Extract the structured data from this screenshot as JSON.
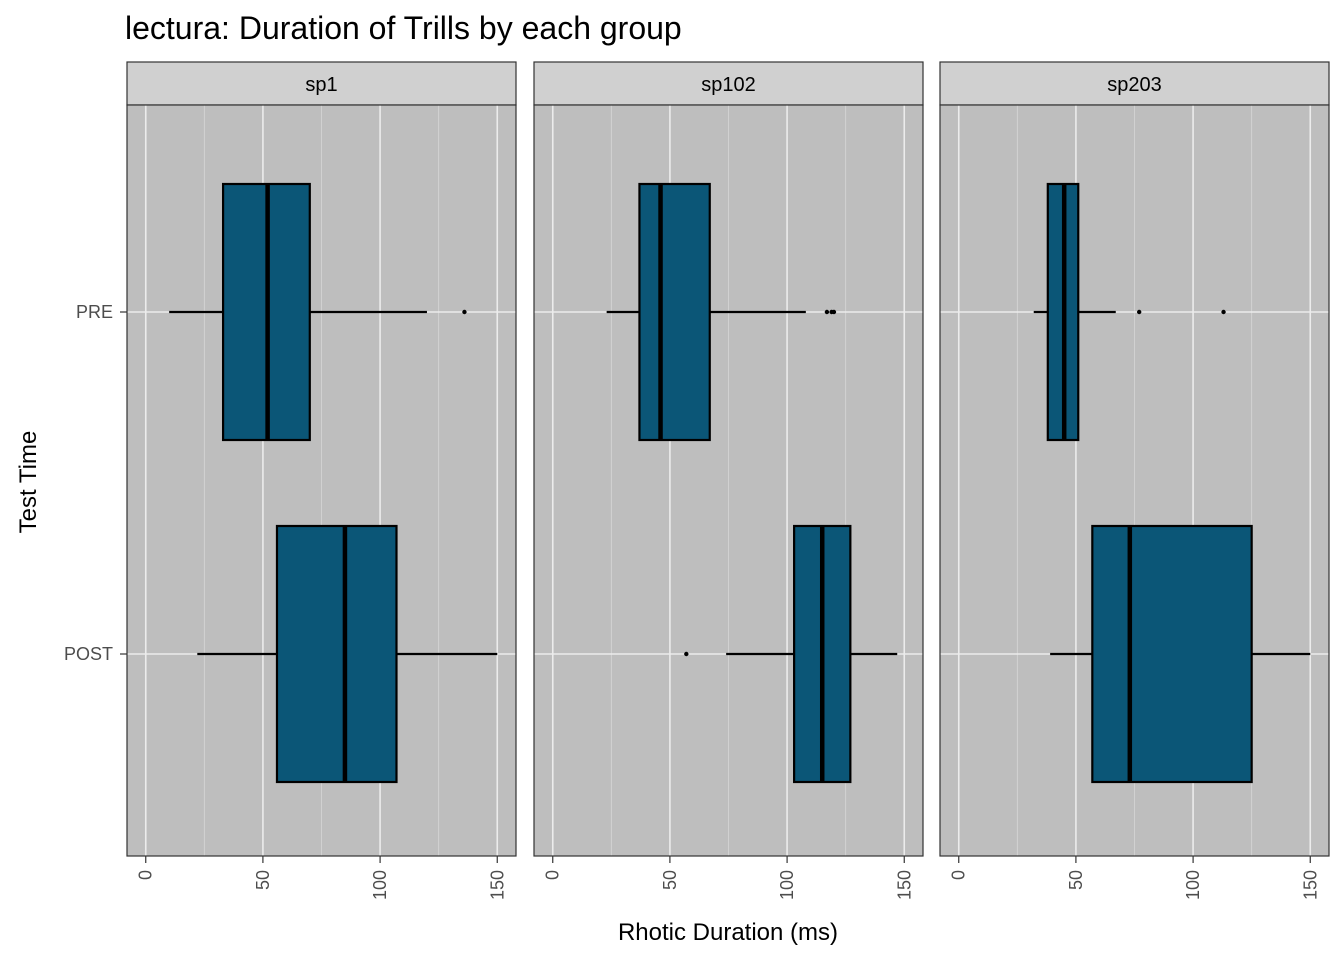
{
  "chart_data": {
    "type": "boxplot",
    "title": "lectura: Duration of Trills by each group",
    "xlabel": "Rhotic Duration (ms)",
    "ylabel": "Test Time",
    "xlim": [
      -8,
      158
    ],
    "x_ticks": [
      0,
      50,
      100,
      150
    ],
    "x_tick_labels": [
      "0",
      "50",
      "100",
      "150"
    ],
    "categories": [
      "PRE",
      "POST"
    ],
    "grid": true,
    "fill_color": "#0b5677",
    "panel_background": "#bebebe",
    "strip_background": "#d0d0d0",
    "panels": [
      {
        "label": "sp1",
        "boxes": [
          {
            "category": "PRE",
            "whisker_low": 10,
            "q1": 33,
            "median": 52,
            "q3": 70,
            "whisker_high": 120,
            "outliers": [
              136
            ]
          },
          {
            "category": "POST",
            "whisker_low": 22,
            "q1": 56,
            "median": 85,
            "q3": 107,
            "whisker_high": 150,
            "outliers": []
          }
        ]
      },
      {
        "label": "sp102",
        "boxes": [
          {
            "category": "PRE",
            "whisker_low": 23,
            "q1": 37,
            "median": 46,
            "q3": 67,
            "whisker_high": 108,
            "outliers": [
              117,
              119,
              120
            ]
          },
          {
            "category": "POST",
            "whisker_low": 74,
            "q1": 103,
            "median": 115,
            "q3": 127,
            "whisker_high": 147,
            "outliers": [
              57
            ]
          }
        ]
      },
      {
        "label": "sp203",
        "boxes": [
          {
            "category": "PRE",
            "whisker_low": 32,
            "q1": 38,
            "median": 45,
            "q3": 51,
            "whisker_high": 67,
            "outliers": [
              77,
              113
            ]
          },
          {
            "category": "POST",
            "whisker_low": 39,
            "q1": 57,
            "median": 73,
            "q3": 125,
            "whisker_high": 150,
            "outliers": []
          }
        ]
      }
    ]
  }
}
